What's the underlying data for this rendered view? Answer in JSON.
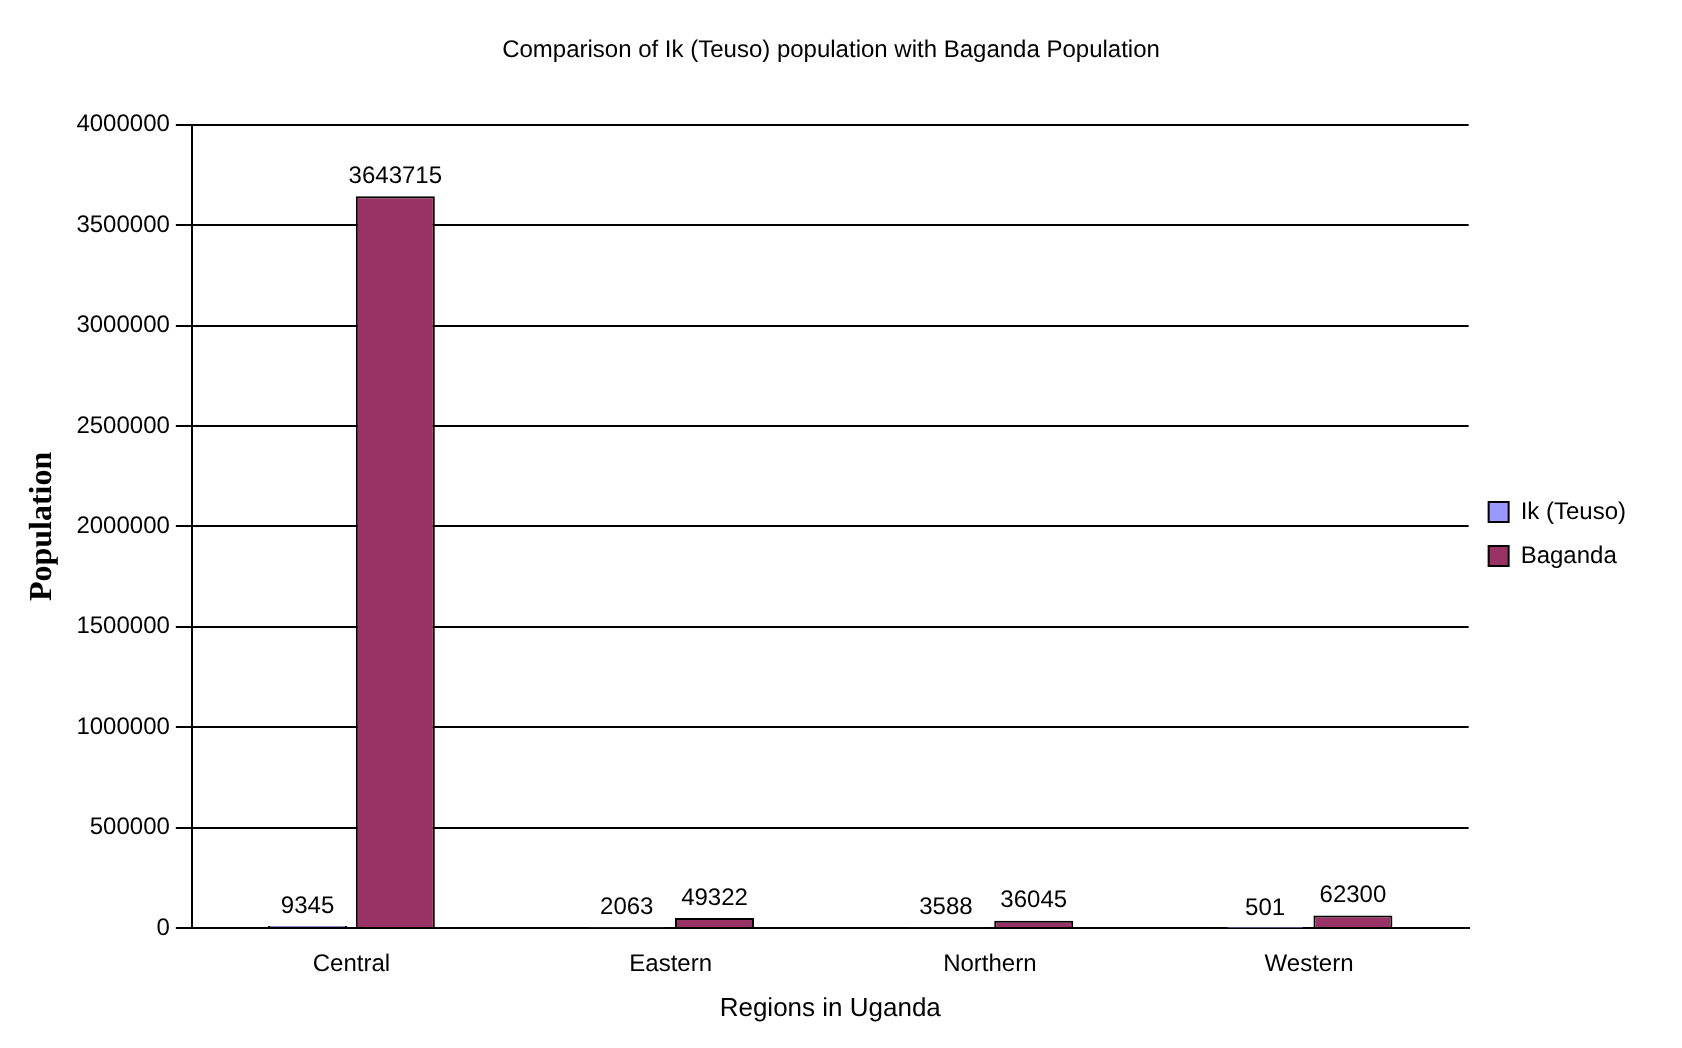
{
  "chart_data": {
    "type": "bar",
    "title": "Comparison of Ik (Teuso) population with Baganda Population",
    "xlabel": "Regions in Uganda",
    "ylabel": "Population",
    "categories": [
      "Central",
      "Eastern",
      "Northern",
      "Western"
    ],
    "series": [
      {
        "name": "Ik (Teuso)",
        "color": "#9999ff",
        "values": [
          9345,
          2063,
          3588,
          501
        ]
      },
      {
        "name": "Baganda",
        "color": "#993366",
        "values": [
          3643715,
          49322,
          36045,
          62300
        ]
      }
    ],
    "ylim": [
      0,
      4000000
    ],
    "yticks": [
      0,
      500000,
      1000000,
      1500000,
      2000000,
      2500000,
      3000000,
      3500000,
      4000000
    ],
    "grid": "y",
    "legend": "right",
    "data_labels": true
  }
}
